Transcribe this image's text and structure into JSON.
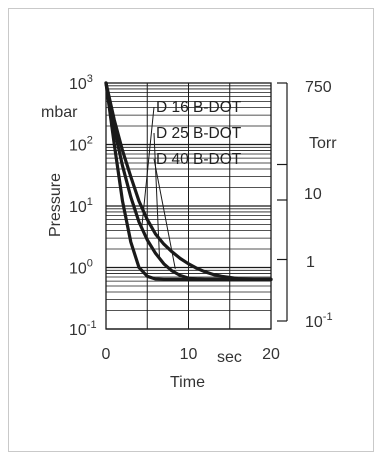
{
  "chart_data": {
    "type": "line",
    "title": "",
    "xlabel": "Time",
    "x_unit": "sec",
    "ylabel": "Pressure",
    "y_unit": "mbar",
    "y_scale": "log",
    "xlim": [
      0,
      20
    ],
    "ylim": [
      0.1,
      1000
    ],
    "x_ticks": [
      {
        "value": 0,
        "label": "0"
      },
      {
        "value": 10,
        "label": "10"
      },
      {
        "value": 20,
        "label": "20"
      }
    ],
    "y_ticks": [
      {
        "value": 1000,
        "base": "10",
        "exp": "3"
      },
      {
        "value": 100,
        "base": "10",
        "exp": "2"
      },
      {
        "value": 10,
        "base": "10",
        "exp": "1"
      },
      {
        "value": 1,
        "base": "10",
        "exp": "0"
      },
      {
        "value": 0.1,
        "base": "10",
        "exp": "-1"
      }
    ],
    "secondary_y_axis": {
      "unit": "Torr",
      "ticks": [
        {
          "value": 750,
          "label": "750"
        },
        {
          "value": 10,
          "label": "10"
        },
        {
          "value": 1,
          "label": "1"
        },
        {
          "value": 0.1,
          "base": "10",
          "exp": "-1"
        }
      ]
    },
    "grid": true,
    "series": [
      {
        "name": "D 16 B-DOT",
        "x": [
          0,
          1,
          2,
          3,
          4,
          5,
          6,
          7,
          8,
          9,
          10,
          11,
          12,
          13,
          14,
          15,
          16,
          17,
          18,
          19,
          20
        ],
        "y": [
          1000,
          250,
          80,
          30,
          12,
          6,
          3.5,
          2.4,
          1.8,
          1.4,
          1.15,
          0.97,
          0.85,
          0.77,
          0.72,
          0.69,
          0.66,
          0.65,
          0.64,
          0.64,
          0.64
        ]
      },
      {
        "name": "D 25 B-DOT",
        "x": [
          0,
          1,
          2,
          3,
          4,
          5,
          6,
          7,
          8,
          9,
          10,
          11,
          12,
          13,
          14,
          15,
          16,
          17,
          18,
          19,
          20
        ],
        "y": [
          1000,
          180,
          45,
          14,
          5.5,
          2.8,
          1.7,
          1.15,
          0.88,
          0.74,
          0.67,
          0.65,
          0.64,
          0.64,
          0.64,
          0.64,
          0.64,
          0.64,
          0.64,
          0.64,
          0.64
        ]
      },
      {
        "name": "D 40 B-DOT",
        "x": [
          0,
          1,
          2,
          3,
          4,
          5,
          6,
          7,
          8,
          9,
          10,
          11,
          12,
          13,
          14,
          15,
          16,
          17,
          18,
          19,
          20
        ],
        "y": [
          1000,
          100,
          12,
          2.6,
          1.0,
          0.72,
          0.65,
          0.64,
          0.64,
          0.64,
          0.64,
          0.64,
          0.64,
          0.64,
          0.64,
          0.64,
          0.64,
          0.64,
          0.64,
          0.64,
          0.64
        ]
      }
    ],
    "colors": {
      "line": "#1a1a1a",
      "grid": "#1a1a1a",
      "text": "#333333",
      "frame": "#c9c9c9"
    }
  }
}
